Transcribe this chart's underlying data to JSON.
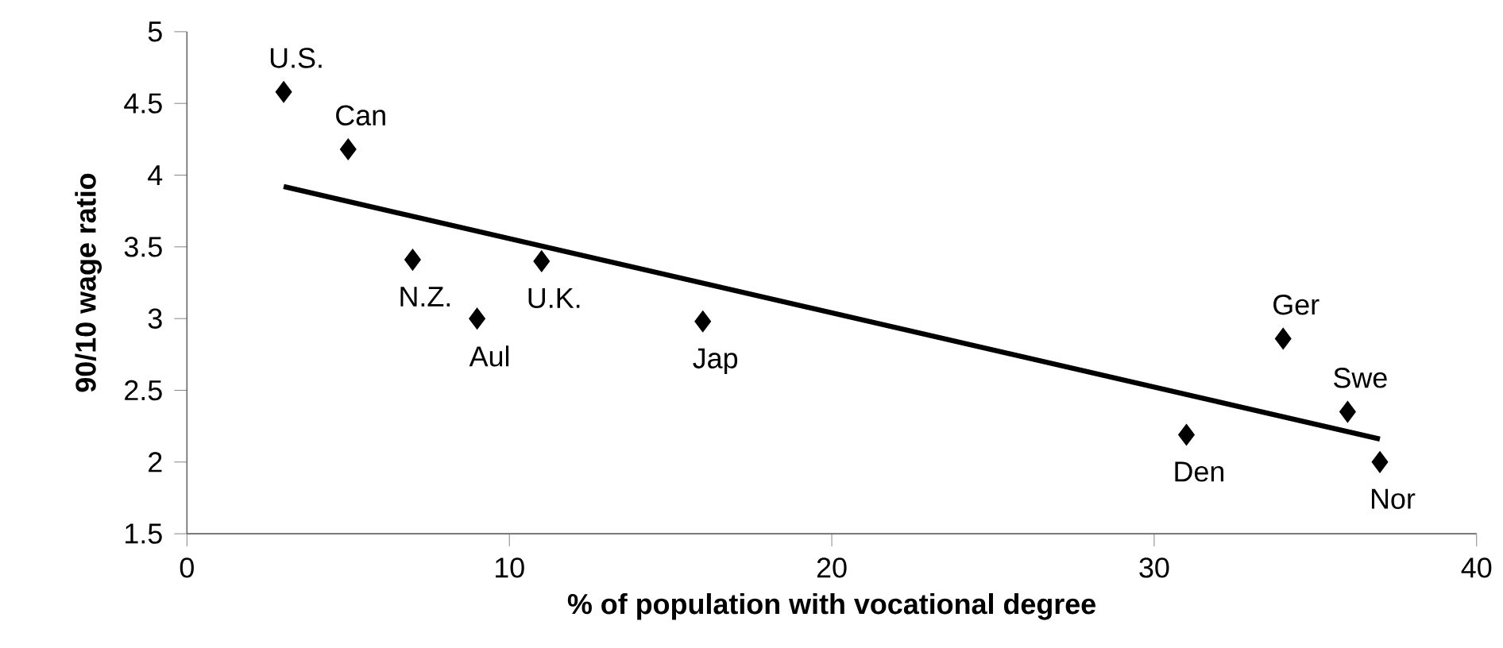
{
  "chart_data": {
    "type": "scatter",
    "xlabel": "% of population with vocational degree",
    "ylabel": "90/10 wage ratio",
    "xlim": [
      0,
      40
    ],
    "ylim": [
      1.5,
      5
    ],
    "xticks": [
      0,
      10,
      20,
      30,
      40
    ],
    "yticks": [
      1.5,
      2,
      2.5,
      3,
      3.5,
      4,
      4.5,
      5
    ],
    "series": [
      {
        "marker": "diamond",
        "color": "#000000",
        "x": [
          3,
          5,
          7,
          9,
          11,
          16,
          31,
          34,
          36,
          37
        ],
        "values": [
          4.58,
          4.18,
          3.41,
          3.0,
          3.4,
          2.98,
          2.19,
          2.86,
          2.35,
          2.0
        ]
      },
      {
        "type": "line",
        "marker": "none",
        "color": "#000000",
        "x": [
          3,
          37
        ],
        "values": [
          3.92,
          2.16
        ]
      }
    ],
    "annotations": [
      {
        "text": "U.S.",
        "x": 3,
        "y": 4.58
      },
      {
        "text": "Can",
        "x": 5,
        "y": 4.18
      },
      {
        "text": "N.Z.",
        "x": 7,
        "y": 3.41
      },
      {
        "text": "Aul",
        "x": 9,
        "y": 3.0
      },
      {
        "text": "U.K.",
        "x": 11,
        "y": 3.4
      },
      {
        "text": "Jap",
        "x": 16,
        "y": 2.98
      },
      {
        "text": "Den",
        "x": 31,
        "y": 2.19
      },
      {
        "text": "Ger",
        "x": 34,
        "y": 2.86
      },
      {
        "text": "Swe",
        "x": 36,
        "y": 2.35
      },
      {
        "text": "Nor",
        "x": 37,
        "y": 2.0
      }
    ]
  }
}
